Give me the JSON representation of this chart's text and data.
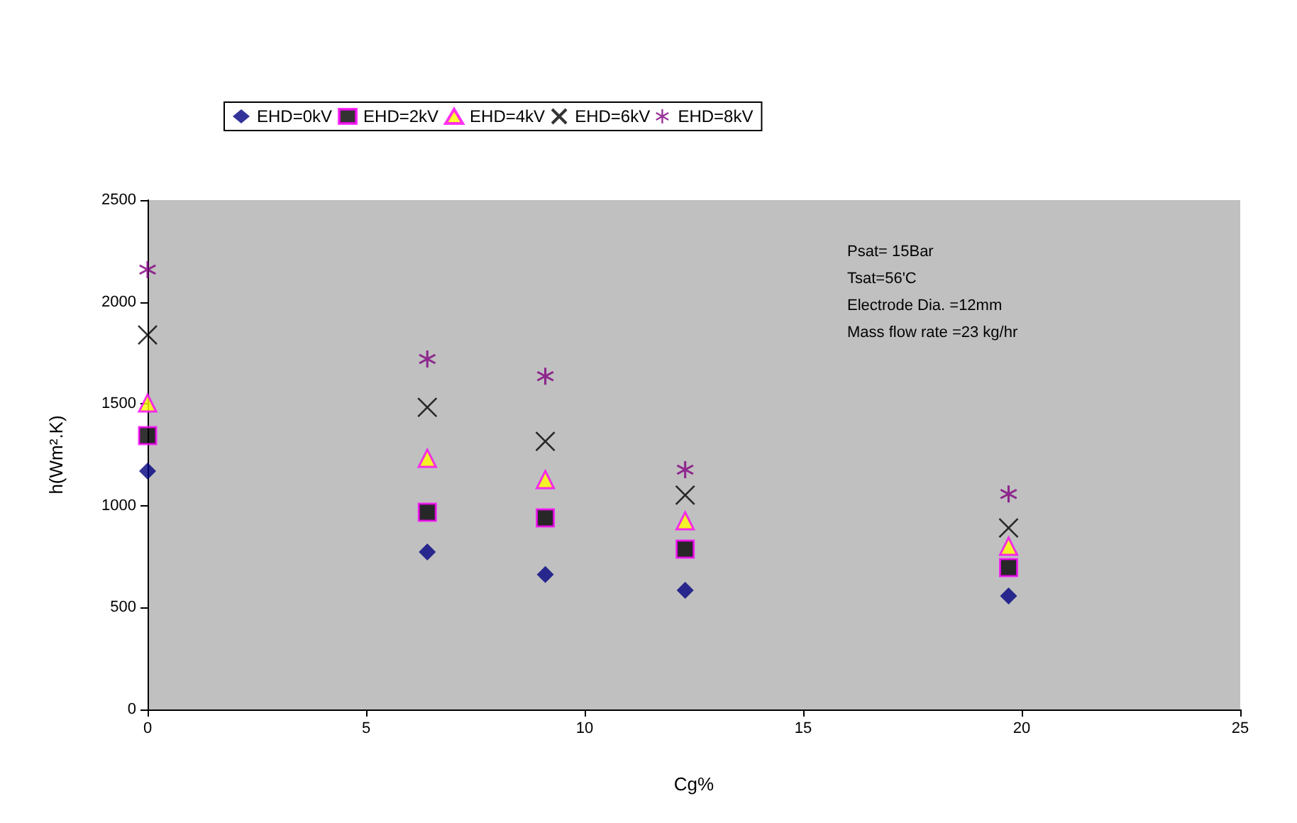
{
  "chart_data": {
    "type": "scatter",
    "xlabel": "Cg%",
    "ylabel": "h(Wm².K)",
    "x": [
      0,
      6.4,
      9.1,
      12.3,
      19.7
    ],
    "series": [
      {
        "name": "EHD=0kV",
        "color": "#000080",
        "marker": "diamond",
        "values": [
          1170,
          773,
          662,
          585,
          557
        ]
      },
      {
        "name": "EHD=2kV",
        "color": "#000000",
        "marker": "square",
        "values": [
          1344,
          968,
          940,
          787,
          696
        ]
      },
      {
        "name": "EHD=4kV",
        "color": "#ffff00",
        "marker": "triangle",
        "values": [
          1504,
          1233,
          1128,
          926,
          801
        ]
      },
      {
        "name": "EHD=6kV",
        "color": "#000000",
        "marker": "cross",
        "values": [
          1838,
          1483,
          1316,
          1052,
          891
        ]
      },
      {
        "name": "EHD=8kV",
        "color": "#800080",
        "marker": "star",
        "values": [
          2159,
          1720,
          1636,
          1177,
          1058
        ]
      }
    ],
    "xlim": [
      0,
      25
    ],
    "xticks": [
      0,
      5,
      10,
      15,
      20,
      25
    ],
    "ylim": [
      0,
      2500
    ],
    "yticks": [
      0,
      500,
      1000,
      1500,
      2000,
      2500
    ],
    "grid": false,
    "legend": "top",
    "annotations": [
      "Psat= 15Bar",
      "Tsat=56'C",
      "Electrode Dia. =12mm",
      "Mass flow rate =23 kg/hr"
    ]
  }
}
